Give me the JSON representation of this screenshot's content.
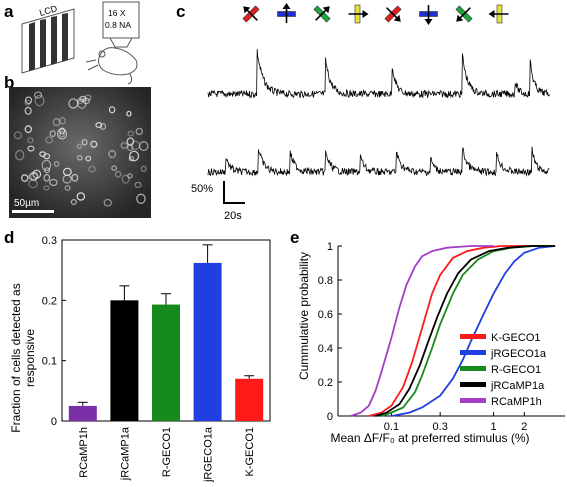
{
  "panels": {
    "a": {
      "label": "a",
      "monitor_text": "LCD",
      "objective_line1": "16 X",
      "objective_line2": "0.8 NA"
    },
    "b": {
      "label": "b",
      "scalebar_label": "50µm"
    },
    "c": {
      "label": "c",
      "stim_colors": [
        "#e0201f",
        "#1f2fd0",
        "#1fa33a",
        "#e6e030",
        "#e0201f",
        "#1f2fd0",
        "#1fa33a",
        "#e6e030"
      ],
      "scale_y_label": "50%",
      "scale_x_label": "20s"
    },
    "d": {
      "label": "d",
      "ylabel_line1": "Fraction of cells detected as",
      "ylabel_line2": "responsive"
    },
    "e": {
      "label": "e",
      "ylabel": "Cummulative probability",
      "xlabel": "Mean ΔF/F₀ at preferred stimulus (%)"
    }
  },
  "chart_data": [
    {
      "type": "bar",
      "categories": [
        "RCaMP1h",
        "jRCaMP1a",
        "R-GECO1",
        "jRGECO1a",
        "K-GECO1"
      ],
      "values": [
        0.025,
        0.2,
        0.193,
        0.262,
        0.07
      ],
      "errors": [
        0.006,
        0.024,
        0.018,
        0.03,
        0.005
      ],
      "colors": [
        "#7b2fa6",
        "#000000",
        "#178a1e",
        "#1f3fe0",
        "#ff1a1a"
      ],
      "ylim": [
        0,
        0.3
      ],
      "yticks": [
        "0",
        "0.1",
        "0.2",
        "0.3"
      ]
    },
    {
      "type": "line",
      "xscale": "log",
      "xlim": [
        0.03,
        5
      ],
      "xticks": [
        "0.1",
        "0.3",
        "1",
        "2"
      ],
      "xtick_values": [
        0.1,
        0.3,
        1,
        2
      ],
      "ylim": [
        0,
        1
      ],
      "yticks": [
        "0",
        "0.2",
        "0.4",
        "0.6",
        "0.8",
        "1"
      ],
      "legend_placement": "lower-right",
      "series": [
        {
          "name": "K-GECO1",
          "color": "#ff1a1a",
          "x": [
            0.06,
            0.08,
            0.1,
            0.13,
            0.16,
            0.2,
            0.25,
            0.3,
            0.4,
            0.55,
            0.8,
            1.2,
            2,
            3.5
          ],
          "y": [
            0,
            0.02,
            0.06,
            0.17,
            0.32,
            0.52,
            0.72,
            0.83,
            0.93,
            0.97,
            0.99,
            1,
            1,
            1
          ]
        },
        {
          "name": "jRGECO1a",
          "color": "#1f3fe0",
          "x": [
            0.1,
            0.15,
            0.2,
            0.3,
            0.4,
            0.5,
            0.6,
            0.8,
            1,
            1.3,
            1.6,
            2,
            2.8,
            4
          ],
          "y": [
            0,
            0.02,
            0.05,
            0.12,
            0.22,
            0.33,
            0.44,
            0.6,
            0.72,
            0.84,
            0.91,
            0.96,
            0.99,
            1
          ]
        },
        {
          "name": "R-GECO1",
          "color": "#178a1e",
          "x": [
            0.08,
            0.1,
            0.13,
            0.17,
            0.2,
            0.25,
            0.3,
            0.4,
            0.5,
            0.7,
            1,
            1.5,
            2.5,
            4
          ],
          "y": [
            0,
            0.02,
            0.05,
            0.14,
            0.24,
            0.4,
            0.54,
            0.72,
            0.83,
            0.92,
            0.97,
            0.99,
            1,
            1
          ]
        },
        {
          "name": "jRCaMP1a",
          "color": "#000000",
          "x": [
            0.07,
            0.09,
            0.12,
            0.15,
            0.19,
            0.23,
            0.28,
            0.35,
            0.45,
            0.6,
            0.9,
            1.4,
            2.3,
            4
          ],
          "y": [
            0,
            0.02,
            0.07,
            0.16,
            0.3,
            0.44,
            0.58,
            0.72,
            0.84,
            0.92,
            0.97,
            0.99,
            1,
            1
          ]
        },
        {
          "name": "RCaMP1h",
          "color": "#a23fc8",
          "x": [
            0.04,
            0.05,
            0.06,
            0.07,
            0.08,
            0.1,
            0.12,
            0.14,
            0.17,
            0.2,
            0.25,
            0.35,
            0.6,
            1
          ],
          "y": [
            0,
            0.02,
            0.06,
            0.15,
            0.26,
            0.46,
            0.64,
            0.77,
            0.88,
            0.94,
            0.97,
            0.99,
            1,
            1
          ]
        }
      ]
    }
  ]
}
